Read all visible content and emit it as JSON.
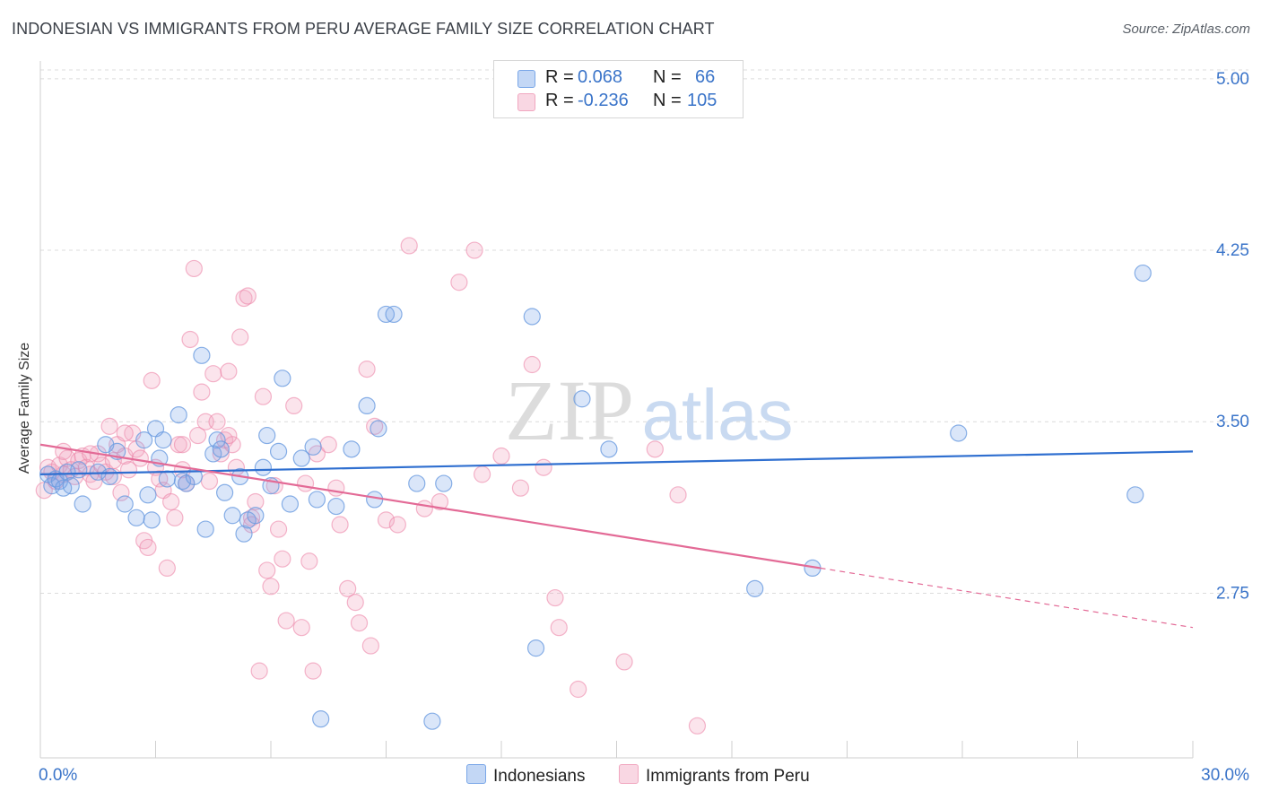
{
  "title": "INDONESIAN VS IMMIGRANTS FROM PERU AVERAGE FAMILY SIZE CORRELATION CHART",
  "source": "Source: ZipAtlas.com",
  "watermark": {
    "zip": "ZIP",
    "atlas": "atlas"
  },
  "stats": [
    {
      "label": "R =",
      "r": " 0.068",
      "n_label": "N =",
      "n": "66",
      "color": "#7aa7e8"
    },
    {
      "label": "R =",
      "r": "-0.236",
      "n_label": "N =",
      "n": "105",
      "color": "#f1a7c0"
    }
  ],
  "legend": [
    {
      "label": "Indonesians",
      "color": "#7aa7e8"
    },
    {
      "label": "Immigrants from Peru",
      "color": "#f1a7c0"
    }
  ],
  "chart_data": {
    "type": "scatter",
    "title": "INDONESIAN VS IMMIGRANTS FROM PERU AVERAGE FAMILY SIZE CORRELATION CHART",
    "xlabel": "",
    "ylabel": "Average Family Size",
    "xlim": [
      0,
      30
    ],
    "ylim": [
      2.03,
      5.07
    ],
    "x_tick_labels": [
      "0.0%",
      "30.0%"
    ],
    "y_ticks": [
      2.75,
      3.5,
      4.25,
      5.0
    ],
    "y_tick_labels": [
      "2.75",
      "3.50",
      "4.25",
      "5.00"
    ],
    "grid": true,
    "legend_position": "bottom",
    "series": [
      {
        "name": "Indonesians",
        "color": "#6a9be0",
        "trend": {
          "x0": 0,
          "y0": 3.27,
          "x1": 30,
          "y1": 3.37
        },
        "points": [
          [
            0.2,
            3.27
          ],
          [
            0.3,
            3.22
          ],
          [
            0.4,
            3.25
          ],
          [
            0.5,
            3.24
          ],
          [
            0.6,
            3.21
          ],
          [
            0.7,
            3.28
          ],
          [
            0.8,
            3.22
          ],
          [
            1.0,
            3.29
          ],
          [
            1.1,
            3.14
          ],
          [
            1.5,
            3.28
          ],
          [
            1.7,
            3.4
          ],
          [
            1.8,
            3.26
          ],
          [
            2.0,
            3.37
          ],
          [
            2.2,
            3.14
          ],
          [
            2.5,
            3.08
          ],
          [
            2.7,
            3.42
          ],
          [
            2.8,
            3.18
          ],
          [
            2.9,
            3.07
          ],
          [
            3.0,
            3.47
          ],
          [
            3.1,
            3.34
          ],
          [
            3.2,
            3.42
          ],
          [
            3.3,
            3.25
          ],
          [
            3.6,
            3.53
          ],
          [
            3.7,
            3.24
          ],
          [
            3.8,
            3.23
          ],
          [
            4.0,
            3.26
          ],
          [
            4.2,
            3.79
          ],
          [
            4.3,
            3.03
          ],
          [
            4.5,
            3.36
          ],
          [
            4.6,
            3.42
          ],
          [
            4.7,
            3.38
          ],
          [
            4.8,
            3.19
          ],
          [
            5.0,
            3.09
          ],
          [
            5.2,
            3.26
          ],
          [
            5.3,
            3.01
          ],
          [
            5.4,
            3.07
          ],
          [
            5.6,
            3.09
          ],
          [
            5.8,
            3.3
          ],
          [
            5.9,
            3.44
          ],
          [
            6.0,
            3.22
          ],
          [
            6.2,
            3.37
          ],
          [
            6.3,
            3.69
          ],
          [
            6.5,
            3.14
          ],
          [
            6.8,
            3.34
          ],
          [
            7.1,
            3.39
          ],
          [
            7.2,
            3.16
          ],
          [
            7.7,
            3.13
          ],
          [
            8.1,
            3.38
          ],
          [
            8.5,
            3.57
          ],
          [
            8.7,
            3.16
          ],
          [
            8.8,
            3.47
          ],
          [
            9.0,
            3.97
          ],
          [
            9.2,
            3.97
          ],
          [
            9.8,
            3.23
          ],
          [
            10.2,
            2.19
          ],
          [
            10.5,
            3.23
          ],
          [
            7.3,
            2.2
          ],
          [
            12.8,
            3.96
          ],
          [
            12.9,
            2.51
          ],
          [
            14.1,
            3.6
          ],
          [
            14.8,
            3.38
          ],
          [
            18.6,
            2.77
          ],
          [
            20.1,
            2.86
          ],
          [
            23.9,
            3.45
          ],
          [
            28.5,
            3.18
          ],
          [
            28.7,
            4.15
          ]
        ]
      },
      {
        "name": "Immigrants from Peru",
        "color": "#ec86a8",
        "trend": {
          "x0": 0,
          "y0": 3.4,
          "x1": 20.3,
          "y1": 2.86
        },
        "trend_dashed": {
          "x0": 20.3,
          "y0": 2.86,
          "x1": 30,
          "y1": 2.6
        },
        "points": [
          [
            0.1,
            3.2
          ],
          [
            0.2,
            3.3
          ],
          [
            0.3,
            3.28
          ],
          [
            0.4,
            3.24
          ],
          [
            0.5,
            3.31
          ],
          [
            0.6,
            3.27
          ],
          [
            0.7,
            3.34
          ],
          [
            0.8,
            3.29
          ],
          [
            0.9,
            3.26
          ],
          [
            1.0,
            3.33
          ],
          [
            1.1,
            3.35
          ],
          [
            1.2,
            3.3
          ],
          [
            1.3,
            3.27
          ],
          [
            1.4,
            3.24
          ],
          [
            1.5,
            3.36
          ],
          [
            1.6,
            3.31
          ],
          [
            1.7,
            3.28
          ],
          [
            1.8,
            3.48
          ],
          [
            1.9,
            3.33
          ],
          [
            2.0,
            3.4
          ],
          [
            2.1,
            3.19
          ],
          [
            2.2,
            3.35
          ],
          [
            2.3,
            3.29
          ],
          [
            2.4,
            3.45
          ],
          [
            2.5,
            3.38
          ],
          [
            2.6,
            3.34
          ],
          [
            2.7,
            2.98
          ],
          [
            2.8,
            2.95
          ],
          [
            2.9,
            3.68
          ],
          [
            3.0,
            3.3
          ],
          [
            3.1,
            3.25
          ],
          [
            3.2,
            3.2
          ],
          [
            3.3,
            2.86
          ],
          [
            3.4,
            3.15
          ],
          [
            3.5,
            3.08
          ],
          [
            3.6,
            3.4
          ],
          [
            3.7,
            3.29
          ],
          [
            3.8,
            3.23
          ],
          [
            3.9,
            3.86
          ],
          [
            4.0,
            4.17
          ],
          [
            4.1,
            3.44
          ],
          [
            4.2,
            3.63
          ],
          [
            4.3,
            3.5
          ],
          [
            4.4,
            3.24
          ],
          [
            4.5,
            3.71
          ],
          [
            4.6,
            3.5
          ],
          [
            4.7,
            3.36
          ],
          [
            4.8,
            3.42
          ],
          [
            4.9,
            3.72
          ],
          [
            5.0,
            3.4
          ],
          [
            5.1,
            3.3
          ],
          [
            5.2,
            3.87
          ],
          [
            5.3,
            4.04
          ],
          [
            5.4,
            4.05
          ],
          [
            5.5,
            3.08
          ],
          [
            5.6,
            3.15
          ],
          [
            5.7,
            2.41
          ],
          [
            5.8,
            3.61
          ],
          [
            5.9,
            2.85
          ],
          [
            6.0,
            2.78
          ],
          [
            6.1,
            3.22
          ],
          [
            6.2,
            3.03
          ],
          [
            6.3,
            2.9
          ],
          [
            6.4,
            2.63
          ],
          [
            6.6,
            3.57
          ],
          [
            6.8,
            2.6
          ],
          [
            7.0,
            2.89
          ],
          [
            7.1,
            2.41
          ],
          [
            7.2,
            3.36
          ],
          [
            7.5,
            3.4
          ],
          [
            7.7,
            3.21
          ],
          [
            7.8,
            3.05
          ],
          [
            8.0,
            2.77
          ],
          [
            8.2,
            2.71
          ],
          [
            8.3,
            2.62
          ],
          [
            8.5,
            3.73
          ],
          [
            8.6,
            2.52
          ],
          [
            8.7,
            3.48
          ],
          [
            9.0,
            3.07
          ],
          [
            9.3,
            3.05
          ],
          [
            9.6,
            4.27
          ],
          [
            10.0,
            3.12
          ],
          [
            10.4,
            3.15
          ],
          [
            10.9,
            4.11
          ],
          [
            11.3,
            4.25
          ],
          [
            11.5,
            3.27
          ],
          [
            12.0,
            3.35
          ],
          [
            12.5,
            3.21
          ],
          [
            12.8,
            3.75
          ],
          [
            13.1,
            3.3
          ],
          [
            13.4,
            2.73
          ],
          [
            13.5,
            2.6
          ],
          [
            14.0,
            2.33
          ],
          [
            15.2,
            2.45
          ],
          [
            16.0,
            3.38
          ],
          [
            16.6,
            3.18
          ],
          [
            17.1,
            2.17
          ],
          [
            5.5,
            3.05
          ],
          [
            6.9,
            3.23
          ],
          [
            3.7,
            3.4
          ],
          [
            2.2,
            3.45
          ],
          [
            1.3,
            3.36
          ],
          [
            0.6,
            3.37
          ],
          [
            1.9,
            3.26
          ],
          [
            4.9,
            3.44
          ]
        ]
      }
    ]
  }
}
